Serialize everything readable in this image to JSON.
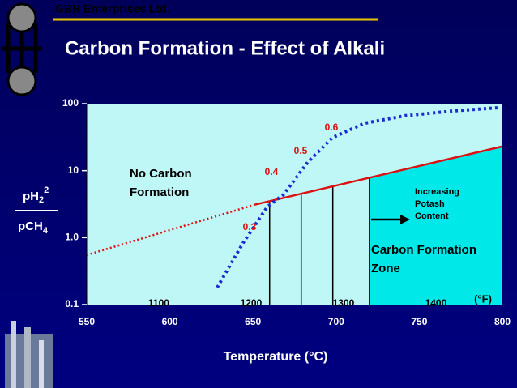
{
  "chart_data": {
    "type": "line",
    "header": "GBH Enterprises Ltd.",
    "title": "Carbon Formation - Effect of Alkali",
    "xlabel": "Temperature (°C)",
    "ylabel": {
      "num": "pH",
      "num_sub": "2",
      "num_sup": "2",
      "den": "pCH",
      "den_sub": "4"
    },
    "xlim": [
      550,
      800
    ],
    "xticks": [
      550,
      600,
      650,
      700,
      750,
      800
    ],
    "ylim": [
      0.1,
      100
    ],
    "yticks": [
      0.1,
      {
        "value": 1,
        "label": "1.0"
      },
      10,
      100
    ],
    "log_y": true,
    "secondary_x": {
      "label": "(°F)",
      "ticks": [
        1100,
        1200,
        1300,
        1400
      ]
    },
    "series": [
      {
        "color": "#dd1111",
        "style": "solid",
        "x": [
          651,
          800
        ],
        "values": [
          3.1,
          23
        ]
      },
      {
        "color": "#dd1111",
        "style": "dotted",
        "x": [
          550,
          651
        ],
        "values": [
          0.55,
          3.1
        ]
      },
      {
        "color": "#1a2bd0",
        "style": "dotted",
        "x": [
          628.5,
          644,
          658.7,
          668.4,
          683,
          697.7,
          717,
          741.4,
          770.8,
          797.6
        ],
        "values": [
          0.18,
          0.83,
          2.9,
          4.4,
          13.4,
          31,
          51,
          66,
          78,
          87
        ]
      }
    ],
    "verticals": [
      660,
      679,
      698,
      720
    ],
    "potash_labels": [
      0.3,
      0.4,
      0.5,
      0.6
    ],
    "annotations": {
      "no_carbon": [
        "No Carbon",
        "Formation"
      ],
      "carbon_zone": [
        "Carbon Formation",
        "Zone"
      ],
      "potash": [
        "Increasing",
        "Potash",
        "Content"
      ]
    }
  }
}
